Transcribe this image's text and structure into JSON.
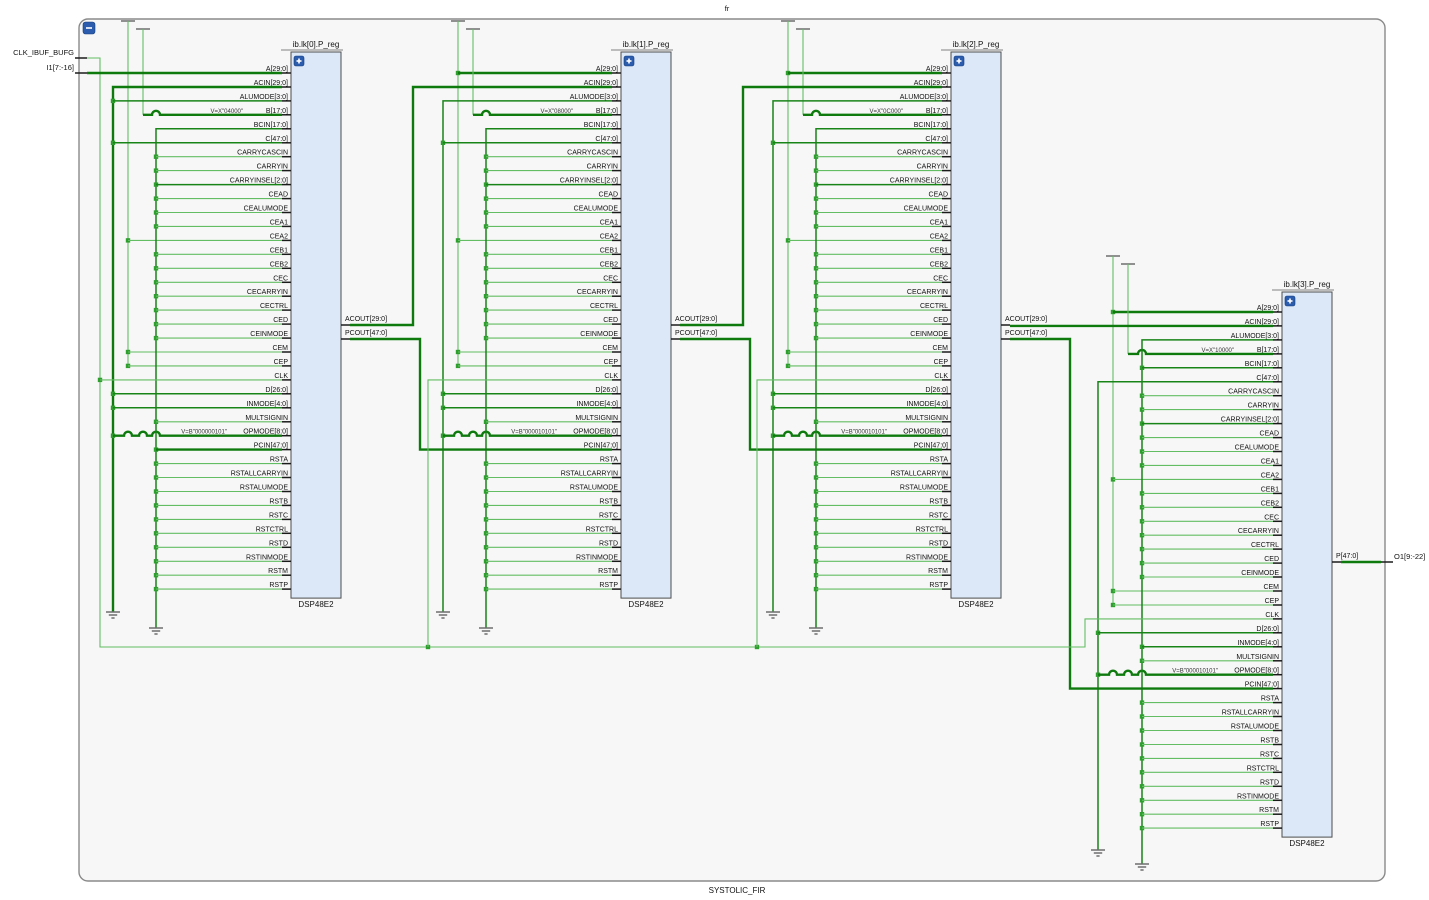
{
  "diagram": {
    "top_label": "fr",
    "bottom_label": "SYSTOLIC_FIR"
  },
  "inputs": {
    "clk_label": "CLK_IBUF_BUFG",
    "data_label": "I1[7:-16]"
  },
  "output": {
    "label": "O1[9:-22]"
  },
  "cascade_labels": {
    "acout": "ACOUT[29:0]",
    "pcout": "PCOUT[47:0]"
  },
  "pin_names": [
    "A[29:0]",
    "ACIN[29:0]",
    "ALUMODE[3:0]",
    "B[17:0]",
    "BCIN[17:0]",
    "C[47:0]",
    "CARRYCASCIN",
    "CARRYIN",
    "CARRYINSEL[2:0]",
    "CEAD",
    "CEALUMODE",
    "CEA1",
    "CEA2",
    "CEB1",
    "CEB2",
    "CEC",
    "CECARRYIN",
    "CECTRL",
    "CED",
    "CEINMODE",
    "CEM",
    "CEP",
    "CLK",
    "D[26:0]",
    "INMODE[4:0]",
    "MULTSIGNIN",
    "OPMODE[8:0]",
    "PCIN[47:0]",
    "RSTA",
    "RSTALLCARRYIN",
    "RSTALUMODE",
    "RSTB",
    "RSTC",
    "RSTCTRL",
    "RSTD",
    "RSTINMODE",
    "RSTM",
    "RSTP"
  ],
  "blocks": [
    {
      "title": "ib.lk[0].P_reg",
      "type": "DSP48E2",
      "b_value": "V=X\"04000\"",
      "opmode_value": "V=B\"000000101\"",
      "outputs": [
        "ACOUT[29:0]",
        "PCOUT[47:0]"
      ]
    },
    {
      "title": "ib.lk[1].P_reg",
      "type": "DSP48E2",
      "b_value": "V=X\"08000\"",
      "opmode_value": "V=B\"000010101\"",
      "outputs": [
        "ACOUT[29:0]",
        "PCOUT[47:0]"
      ]
    },
    {
      "title": "ib.lk[2].P_reg",
      "type": "DSP48E2",
      "b_value": "V=X\"0C000\"",
      "opmode_value": "V=B\"000010101\"",
      "outputs": [
        "ACOUT[29:0]",
        "PCOUT[47:0]"
      ]
    },
    {
      "title": "ib.lk[3].P_reg",
      "type": "DSP48E2",
      "b_value": "V=X\"10000\"",
      "opmode_value": "V=B\"000010101\"",
      "outputs": [
        "P[47:0]"
      ]
    }
  ],
  "colors": {
    "wire_dark": "#0e7a0e",
    "wire_med": "#188418",
    "wire_light": "#63bd63",
    "dot_green": "#2e9e2e",
    "block_fill": "#dce8f8",
    "block_border": "#4d4d4d",
    "button_blue": "#2b5cad",
    "symbol_gray": "#6e6e6e",
    "canvas_fill": "#f7f7f7",
    "canvas_border": "#8a8a8a"
  }
}
